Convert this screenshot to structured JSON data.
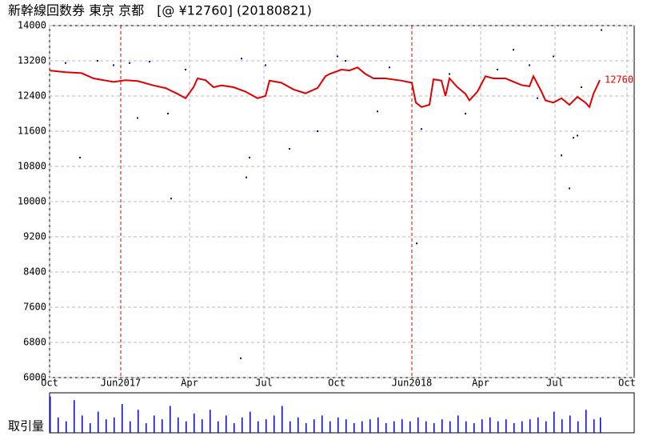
{
  "chart_data": [
    {
      "type": "line",
      "title": "新幹線回数券 東京 京都　[@ ¥12760] (20180821)",
      "annotation": "12760",
      "xlim": [
        0,
        731
      ],
      "xticks": [
        {
          "value": 0,
          "label": "Oct"
        },
        {
          "value": 89,
          "label": "Jun2017"
        },
        {
          "value": 175,
          "label": "Apr"
        },
        {
          "value": 268,
          "label": "Jul"
        },
        {
          "value": 359,
          "label": "Oct"
        },
        {
          "value": 453,
          "label": "Jun2018"
        },
        {
          "value": 539,
          "label": "Apr"
        },
        {
          "value": 632,
          "label": "Jul"
        },
        {
          "value": 722,
          "label": "Oct"
        }
      ],
      "highlight_xticks": [
        1,
        5
      ],
      "ylim": [
        6000,
        14000
      ],
      "yticks": [
        6000,
        6800,
        7600,
        8400,
        9200,
        10000,
        10800,
        11600,
        12400,
        13200,
        14000
      ],
      "grid": true,
      "series": [
        {
          "kind": "line",
          "color": "#e00000",
          "x": [
            0,
            20,
            40,
            55,
            80,
            95,
            110,
            130,
            145,
            160,
            170,
            180,
            185,
            195,
            205,
            215,
            230,
            245,
            260,
            270,
            275,
            290,
            305,
            320,
            335,
            345,
            350,
            365,
            375,
            385,
            395,
            405,
            420,
            440,
            453,
            458,
            465,
            475,
            480,
            490,
            495,
            500,
            510,
            520,
            525,
            535,
            545,
            555,
            570,
            590,
            600,
            605,
            615,
            620,
            630,
            640,
            650,
            660,
            670,
            675,
            680,
            688
          ],
          "values": [
            12980,
            12940,
            12920,
            12800,
            12720,
            12760,
            12740,
            12640,
            12580,
            12450,
            12350,
            12600,
            12800,
            12760,
            12600,
            12640,
            12600,
            12500,
            12350,
            12400,
            12750,
            12700,
            12550,
            12460,
            12580,
            12850,
            12900,
            13000,
            12980,
            13050,
            12900,
            12800,
            12800,
            12750,
            12700,
            12250,
            12150,
            12200,
            12780,
            12750,
            12400,
            12800,
            12600,
            12450,
            12300,
            12500,
            12850,
            12800,
            12800,
            12650,
            12620,
            12850,
            12500,
            12300,
            12250,
            12350,
            12200,
            12380,
            12250,
            12150,
            12450,
            12760
          ]
        },
        {
          "kind": "scatter",
          "color": "#0000cc",
          "x": [
            20,
            60,
            80,
            100,
            125,
            38,
            152,
            148,
            110,
            246,
            270,
            250,
            360,
            370,
            300,
            335,
            239,
            459,
            465,
            410,
            520,
            580,
            600,
            630,
            640,
            650,
            655,
            660,
            690,
            240,
            170,
            425,
            500,
            560,
            665,
            610
          ],
          "values": [
            13150,
            13200,
            13100,
            13150,
            13180,
            11000,
            10070,
            12000,
            11900,
            10550,
            13100,
            11000,
            13300,
            13200,
            11200,
            11600,
            6440,
            9050,
            11650,
            12050,
            12000,
            13450,
            13100,
            13300,
            11050,
            10300,
            11450,
            11500,
            13900,
            13250,
            13000,
            13050,
            12900,
            13000,
            12600,
            12350
          ]
        }
      ]
    },
    {
      "type": "bar",
      "ylabel": "取引量",
      "xlim": [
        0,
        731
      ],
      "ylim": [
        0,
        100
      ],
      "color": "#0000ee",
      "x": [
        0,
        10,
        20,
        30,
        40,
        50,
        60,
        70,
        80,
        90,
        100,
        110,
        120,
        130,
        140,
        150,
        160,
        170,
        180,
        190,
        200,
        210,
        220,
        230,
        240,
        250,
        260,
        270,
        280,
        290,
        300,
        310,
        320,
        330,
        340,
        350,
        360,
        370,
        380,
        390,
        400,
        410,
        420,
        430,
        440,
        450,
        460,
        470,
        480,
        490,
        500,
        510,
        520,
        530,
        540,
        550,
        560,
        570,
        580,
        590,
        600,
        610,
        620,
        630,
        640,
        650,
        660,
        670,
        680,
        688
      ],
      "values": [
        95,
        40,
        30,
        85,
        45,
        25,
        55,
        35,
        40,
        75,
        30,
        60,
        25,
        45,
        35,
        70,
        40,
        30,
        50,
        35,
        60,
        30,
        45,
        25,
        40,
        55,
        30,
        35,
        45,
        70,
        30,
        40,
        25,
        35,
        45,
        30,
        40,
        35,
        25,
        30,
        35,
        40,
        25,
        30,
        35,
        30,
        40,
        30,
        25,
        35,
        30,
        45,
        30,
        25,
        35,
        40,
        30,
        35,
        25,
        30,
        35,
        40,
        30,
        55,
        35,
        45,
        30,
        60,
        35,
        40
      ]
    }
  ]
}
